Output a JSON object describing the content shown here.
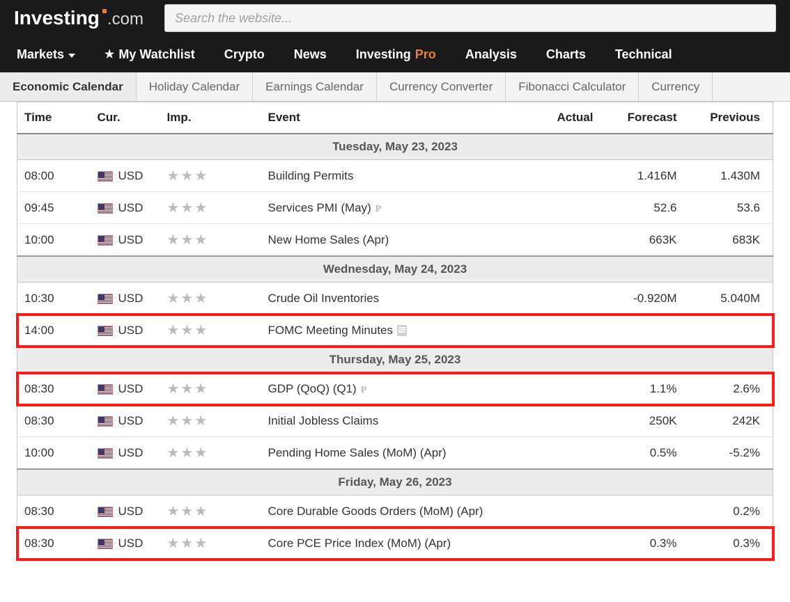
{
  "colors": {
    "header_bg": "#1a1a1a",
    "accent_orange": "#ed7d31",
    "subnav_bg": "#f3f3f3",
    "border": "#c8c8c8",
    "day_header_bg": "#ececec",
    "highlight_border": "#ff1a1a",
    "star_gray": "#bbbbbb",
    "text_primary": "#333333",
    "text_secondary": "#666666"
  },
  "logo": {
    "main": "Investing",
    "suffix": ".com"
  },
  "search": {
    "placeholder": "Search the website..."
  },
  "nav": [
    "Markets",
    "My Watchlist",
    "Crypto",
    "News",
    "InvestingPro",
    "Analysis",
    "Charts",
    "Technical"
  ],
  "subnav": [
    "Economic Calendar",
    "Holiday Calendar",
    "Earnings Calendar",
    "Currency Converter",
    "Fibonacci Calculator",
    "Currency "
  ],
  "subnav_active_index": 0,
  "table": {
    "columns": [
      "Time",
      "Cur.",
      "Imp.",
      "Event",
      "Actual",
      "Forecast",
      "Previous"
    ],
    "days": [
      {
        "label": "Tuesday, May 23, 2023",
        "rows": [
          {
            "time": "08:00",
            "cur": "USD",
            "imp": 3,
            "event": "Building Permits",
            "actual": "",
            "forecast": "1.416M",
            "previous": "1.430M",
            "highlight": false,
            "p": false,
            "doc": false
          },
          {
            "time": "09:45",
            "cur": "USD",
            "imp": 3,
            "event": "Services PMI (May)",
            "actual": "",
            "forecast": "52.6",
            "previous": "53.6",
            "highlight": false,
            "p": true,
            "doc": false
          },
          {
            "time": "10:00",
            "cur": "USD",
            "imp": 3,
            "event": "New Home Sales (Apr)",
            "actual": "",
            "forecast": "663K",
            "previous": "683K",
            "highlight": false,
            "p": false,
            "doc": false
          }
        ]
      },
      {
        "label": "Wednesday, May 24, 2023",
        "rows": [
          {
            "time": "10:30",
            "cur": "USD",
            "imp": 3,
            "event": "Crude Oil Inventories",
            "actual": "",
            "forecast": "-0.920M",
            "previous": "5.040M",
            "highlight": false,
            "p": false,
            "doc": false
          },
          {
            "time": "14:00",
            "cur": "USD",
            "imp": 3,
            "event": "FOMC Meeting Minutes",
            "actual": "",
            "forecast": "",
            "previous": "",
            "highlight": true,
            "p": false,
            "doc": true
          }
        ]
      },
      {
        "label": "Thursday, May 25, 2023",
        "rows": [
          {
            "time": "08:30",
            "cur": "USD",
            "imp": 3,
            "event": "GDP (QoQ) (Q1)",
            "actual": "",
            "forecast": "1.1%",
            "previous": "2.6%",
            "highlight": true,
            "p": true,
            "doc": false
          },
          {
            "time": "08:30",
            "cur": "USD",
            "imp": 3,
            "event": "Initial Jobless Claims",
            "actual": "",
            "forecast": "250K",
            "previous": "242K",
            "highlight": false,
            "p": false,
            "doc": false
          },
          {
            "time": "10:00",
            "cur": "USD",
            "imp": 3,
            "event": "Pending Home Sales (MoM) (Apr)",
            "actual": "",
            "forecast": "0.5%",
            "previous": "-5.2%",
            "highlight": false,
            "p": false,
            "doc": false
          }
        ]
      },
      {
        "label": "Friday, May 26, 2023",
        "rows": [
          {
            "time": "08:30",
            "cur": "USD",
            "imp": 3,
            "event": "Core Durable Goods Orders (MoM) (Apr)",
            "actual": "",
            "forecast": "",
            "previous": "0.2%",
            "highlight": false,
            "p": false,
            "doc": false
          },
          {
            "time": "08:30",
            "cur": "USD",
            "imp": 3,
            "event": "Core PCE Price Index (MoM) (Apr)",
            "actual": "",
            "forecast": "0.3%",
            "previous": "0.3%",
            "highlight": true,
            "p": false,
            "doc": false
          }
        ]
      }
    ]
  }
}
